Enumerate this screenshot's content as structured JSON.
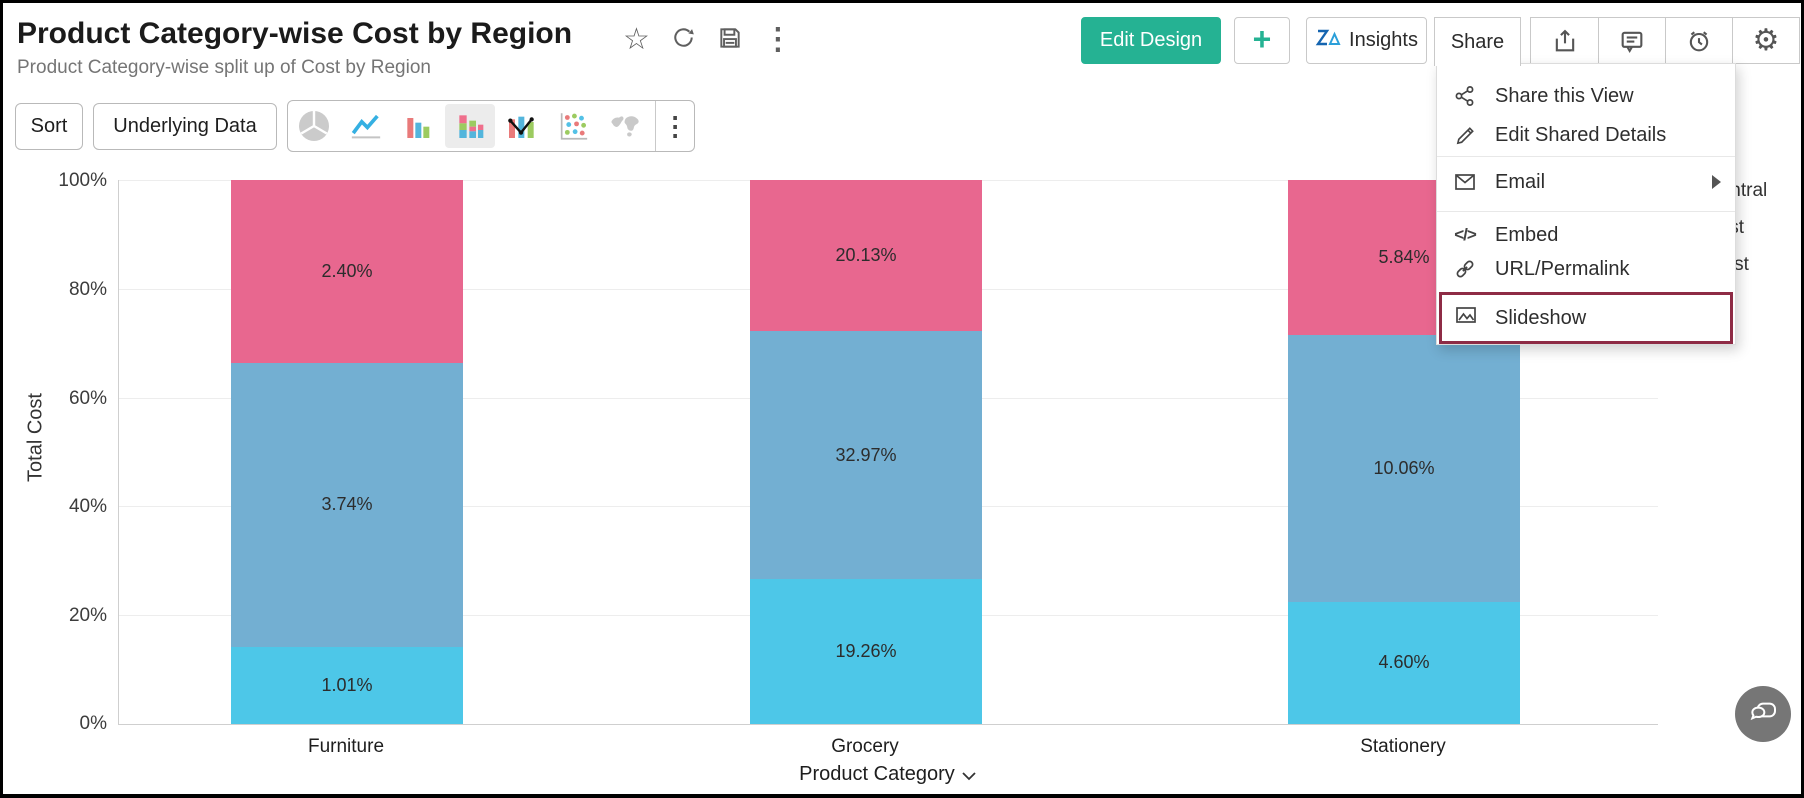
{
  "theme": {
    "accent_green": "#25B293",
    "highlight_maroon": "#8E2B45",
    "zia_blue": "#2B9FD9",
    "icon_gray": "#5F5F5F"
  },
  "header": {
    "title": "Product Category-wise Cost by Region",
    "subtitle": "Product Category-wise split up of Cost by Region",
    "title_icons": [
      "star-icon",
      "refresh-icon",
      "save-icon",
      "kebab-menu-icon"
    ],
    "actions": {
      "edit_design": "Edit Design",
      "plus": "+",
      "insights": "Insights",
      "share": "Share"
    },
    "action_icons": [
      "export-icon",
      "comment-icon",
      "alarm-icon",
      "gear-icon"
    ]
  },
  "toolbar": {
    "sort": "Sort",
    "underlying_data": "Underlying Data",
    "chart_types": [
      "pie-chart-icon",
      "line-chart-icon",
      "bar-chart-icon",
      "stacked-bar-chart-icon",
      "bar-line-chart-icon",
      "scatter-chart-icon",
      "map-chart-icon"
    ],
    "selected_chart_type": "stacked-bar-chart-icon"
  },
  "share_menu": {
    "items": [
      {
        "label": "Share this View",
        "icon": "share-nodes-icon"
      },
      {
        "label": "Edit Shared Details",
        "icon": "pencil-icon"
      },
      {
        "label": "Email",
        "icon": "envelope-icon",
        "has_submenu": true
      },
      {
        "label": "Embed",
        "icon": "code-icon"
      },
      {
        "label": "URL/Permalink",
        "icon": "link-icon"
      },
      {
        "label": "Slideshow",
        "icon": "slideshow-icon",
        "highlighted": true
      }
    ]
  },
  "chart_data": {
    "type": "bar",
    "subtype": "100%-stacked-column",
    "categories": [
      "Furniture",
      "Grocery",
      "Stationery"
    ],
    "series": [
      {
        "name": "Central",
        "color": "#4DC7E8",
        "values": [
          1.01,
          19.26,
          4.6
        ]
      },
      {
        "name": "East",
        "color": "#73AFD2",
        "values": [
          3.74,
          32.97,
          10.06
        ]
      },
      {
        "name": "West",
        "color": "#E8678F",
        "values": [
          2.4,
          20.13,
          5.84
        ]
      }
    ],
    "segment_labels": [
      [
        "1.01%",
        "19.26%",
        "4.60%"
      ],
      [
        "3.74%",
        "32.97%",
        "10.06%"
      ],
      [
        "2.40%",
        "20.13%",
        "5.84%"
      ]
    ],
    "title": "Product Category-wise Cost by Region",
    "xlabel": "Product Category",
    "ylabel": "Total Cost",
    "yticks": [
      "100%",
      "80%",
      "60%",
      "40%",
      "20%",
      "0%"
    ],
    "ylim": [
      "0%",
      "100%"
    ],
    "grid": true,
    "legend": [
      "Central",
      "East",
      "West"
    ],
    "legend_position": "right"
  },
  "chat_button": {
    "icon": "chat-bubbles-icon"
  }
}
